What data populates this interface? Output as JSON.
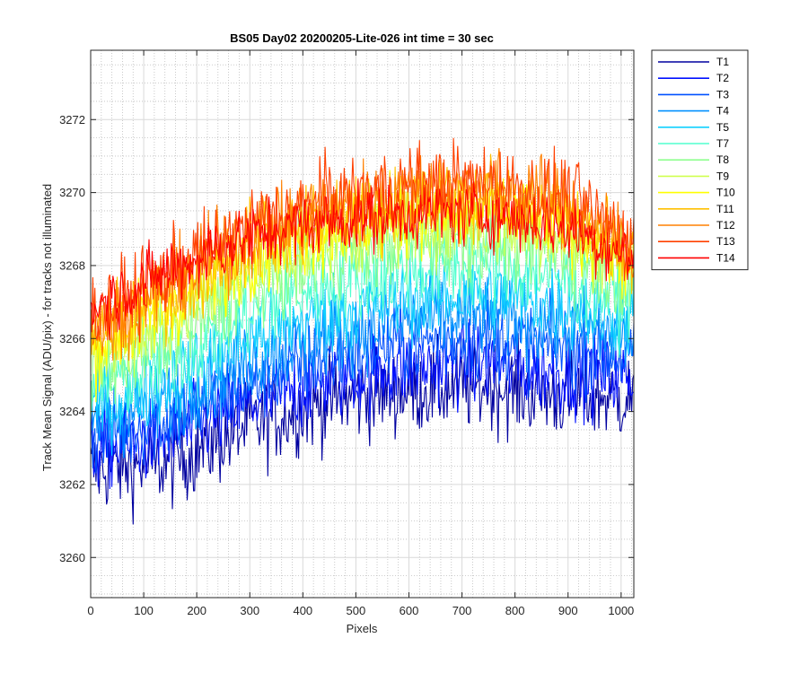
{
  "chart_data": {
    "type": "line",
    "title": "BS05 Day02 20200205-Lite-026 int time = 30 sec",
    "xlabel": "Pixels",
    "ylabel": "Track Mean Signal (ADU/pix) - for tracks not illuminated",
    "xlim": [
      0,
      1024
    ],
    "ylim": [
      3258.9,
      3273.9
    ],
    "xticks": [
      0,
      100,
      200,
      300,
      400,
      500,
      600,
      700,
      800,
      900,
      1000
    ],
    "yticks": [
      3260,
      3262,
      3264,
      3266,
      3268,
      3270,
      3272
    ],
    "grid": "on (major and minor)",
    "legend_placement": "outside-top-right",
    "series": [
      {
        "name": "T1",
        "color": "#00009f",
        "profile": [
          [
            0,
            3262.4
          ],
          [
            150,
            3262.6
          ],
          [
            300,
            3263.6
          ],
          [
            450,
            3264.3
          ],
          [
            600,
            3264.6
          ],
          [
            750,
            3264.7
          ],
          [
            900,
            3264.4
          ],
          [
            1024,
            3264.4
          ]
        ],
        "noise": 1.1
      },
      {
        "name": "T2",
        "color": "#0010ff",
        "profile": [
          [
            0,
            3262.9
          ],
          [
            150,
            3263.3
          ],
          [
            300,
            3264.2
          ],
          [
            450,
            3264.9
          ],
          [
            600,
            3265.2
          ],
          [
            750,
            3265.3
          ],
          [
            900,
            3265.0
          ],
          [
            1024,
            3265.0
          ]
        ],
        "noise": 1.0
      },
      {
        "name": "T3",
        "color": "#0050ff",
        "profile": [
          [
            0,
            3263.3
          ],
          [
            150,
            3263.8
          ],
          [
            300,
            3264.8
          ],
          [
            450,
            3265.5
          ],
          [
            600,
            3265.9
          ],
          [
            750,
            3266.0
          ],
          [
            900,
            3265.7
          ],
          [
            1024,
            3265.5
          ]
        ],
        "noise": 1.0
      },
      {
        "name": "T4",
        "color": "#0090ff",
        "profile": [
          [
            0,
            3263.7
          ],
          [
            150,
            3264.3
          ],
          [
            300,
            3265.4
          ],
          [
            450,
            3266.1
          ],
          [
            600,
            3266.5
          ],
          [
            750,
            3266.6
          ],
          [
            900,
            3266.3
          ],
          [
            1024,
            3266.0
          ]
        ],
        "noise": 1.0
      },
      {
        "name": "T5",
        "color": "#10d0ff",
        "profile": [
          [
            0,
            3264.1
          ],
          [
            150,
            3264.8
          ],
          [
            300,
            3266.0
          ],
          [
            450,
            3266.7
          ],
          [
            600,
            3267.1
          ],
          [
            750,
            3267.2
          ],
          [
            900,
            3266.9
          ],
          [
            1024,
            3266.5
          ]
        ],
        "noise": 1.0
      },
      {
        "name": "T7",
        "color": "#50ffcf",
        "profile": [
          [
            0,
            3264.6
          ],
          [
            150,
            3265.4
          ],
          [
            300,
            3266.7
          ],
          [
            450,
            3267.5
          ],
          [
            600,
            3267.9
          ],
          [
            750,
            3268.0
          ],
          [
            900,
            3267.6
          ],
          [
            1024,
            3267.0
          ]
        ],
        "noise": 1.0
      },
      {
        "name": "T8",
        "color": "#8fff8f",
        "profile": [
          [
            0,
            3265.0
          ],
          [
            150,
            3266.0
          ],
          [
            300,
            3267.4
          ],
          [
            450,
            3268.2
          ],
          [
            600,
            3268.6
          ],
          [
            750,
            3268.7
          ],
          [
            900,
            3268.3
          ],
          [
            1024,
            3267.5
          ]
        ],
        "noise": 1.0
      },
      {
        "name": "T9",
        "color": "#cfff50",
        "profile": [
          [
            0,
            3265.4
          ],
          [
            150,
            3266.5
          ],
          [
            300,
            3267.9
          ],
          [
            450,
            3268.7
          ],
          [
            600,
            3269.1
          ],
          [
            750,
            3269.2
          ],
          [
            900,
            3268.8
          ],
          [
            1024,
            3267.9
          ]
        ],
        "noise": 1.0
      },
      {
        "name": "T10",
        "color": "#ffff00",
        "profile": [
          [
            0,
            3265.7
          ],
          [
            150,
            3266.9
          ],
          [
            300,
            3268.3
          ],
          [
            450,
            3269.0
          ],
          [
            600,
            3269.4
          ],
          [
            750,
            3269.5
          ],
          [
            900,
            3269.1
          ],
          [
            1024,
            3268.1
          ]
        ],
        "noise": 1.0
      },
      {
        "name": "T11",
        "color": "#ffc000",
        "profile": [
          [
            0,
            3266.0
          ],
          [
            150,
            3267.2
          ],
          [
            300,
            3268.6
          ],
          [
            450,
            3269.3
          ],
          [
            600,
            3269.7
          ],
          [
            750,
            3269.8
          ],
          [
            900,
            3269.4
          ],
          [
            1024,
            3268.3
          ]
        ],
        "noise": 1.0
      },
      {
        "name": "T12",
        "color": "#ff8000",
        "profile": [
          [
            0,
            3266.3
          ],
          [
            150,
            3267.5
          ],
          [
            300,
            3268.9
          ],
          [
            450,
            3269.6
          ],
          [
            600,
            3270.0
          ],
          [
            750,
            3270.1
          ],
          [
            900,
            3269.7
          ],
          [
            1024,
            3268.5
          ]
        ],
        "noise": 1.0
      },
      {
        "name": "T13",
        "color": "#ff4000",
        "profile": [
          [
            0,
            3266.6
          ],
          [
            150,
            3267.8
          ],
          [
            300,
            3269.1
          ],
          [
            450,
            3269.8
          ],
          [
            600,
            3270.2
          ],
          [
            750,
            3270.3
          ],
          [
            900,
            3269.9
          ],
          [
            1024,
            3268.6
          ]
        ],
        "noise": 1.0
      },
      {
        "name": "T14",
        "color": "#ff0000",
        "profile": [
          [
            0,
            3266.8
          ],
          [
            150,
            3267.9
          ],
          [
            300,
            3268.8
          ],
          [
            450,
            3269.2
          ],
          [
            600,
            3269.4
          ],
          [
            750,
            3269.4
          ],
          [
            900,
            3269.0
          ],
          [
            1024,
            3268.2
          ]
        ],
        "noise": 0.8
      }
    ]
  }
}
